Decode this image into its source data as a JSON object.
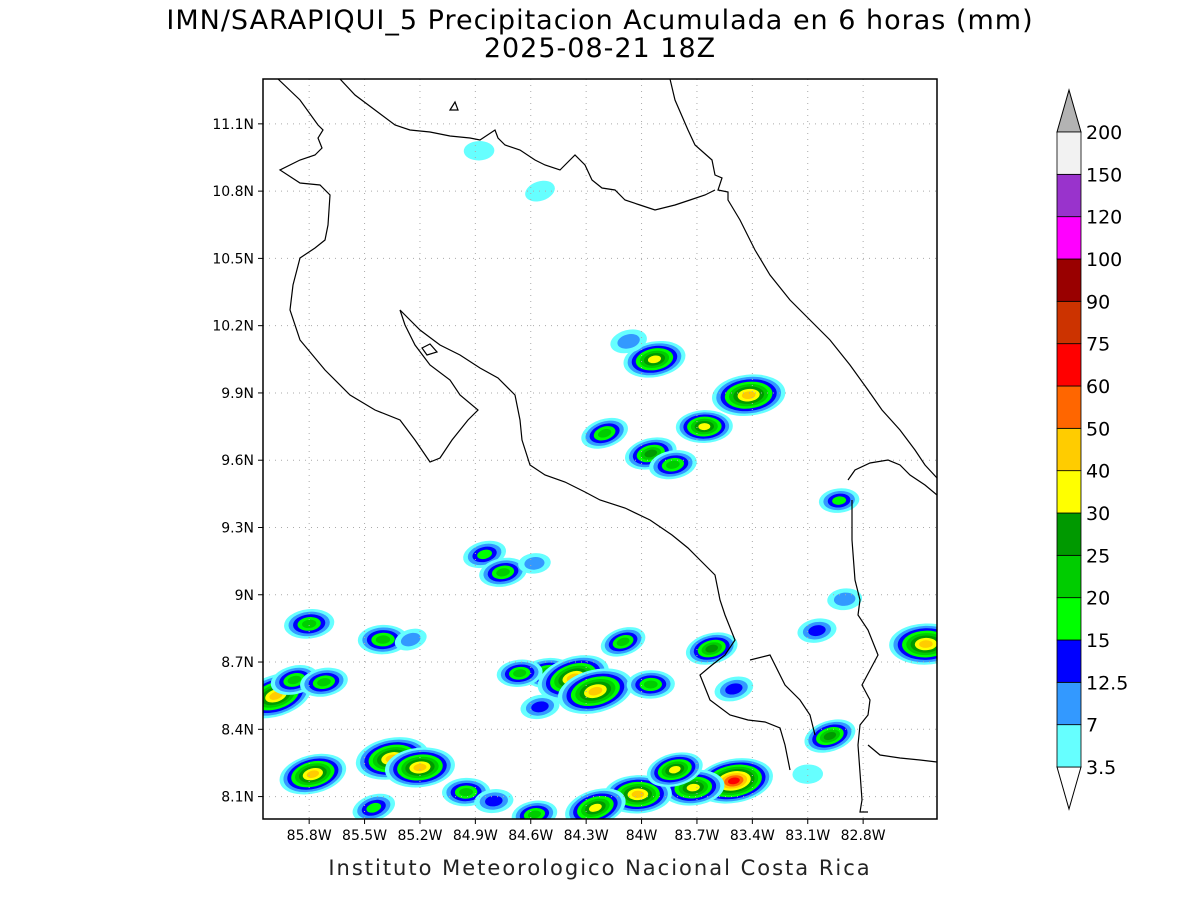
{
  "title": {
    "line1": "IMN/SARAPIQUI_5 Precipitacion Acumulada en 6 horas (mm)",
    "line2": "2025-08-21 18Z"
  },
  "map": {
    "lon_range": [
      -86.05,
      -82.4
    ],
    "lat_range": [
      8.0,
      11.3
    ],
    "lat_ticks": [
      {
        "v": 11.1,
        "label": "11.1N"
      },
      {
        "v": 10.8,
        "label": "10.8N"
      },
      {
        "v": 10.5,
        "label": "10.5N"
      },
      {
        "v": 10.2,
        "label": "10.2N"
      },
      {
        "v": 9.9,
        "label": "9.9N"
      },
      {
        "v": 9.6,
        "label": "9.6N"
      },
      {
        "v": 9.3,
        "label": "9.3N"
      },
      {
        "v": 9.0,
        "label": "9N"
      },
      {
        "v": 8.7,
        "label": "8.7N"
      },
      {
        "v": 8.4,
        "label": "8.4N"
      },
      {
        "v": 8.1,
        "label": "8.1N"
      }
    ],
    "lon_ticks": [
      {
        "v": -85.8,
        "label": "85.8W"
      },
      {
        "v": -85.5,
        "label": "85.5W"
      },
      {
        "v": -85.2,
        "label": "85.2W"
      },
      {
        "v": -84.9,
        "label": "84.9W"
      },
      {
        "v": -84.6,
        "label": "84.6W"
      },
      {
        "v": -84.3,
        "label": "84.3W"
      },
      {
        "v": -84.0,
        "label": "84W"
      },
      {
        "v": -83.7,
        "label": "83.7W"
      },
      {
        "v": -83.4,
        "label": "83.4W"
      },
      {
        "v": -83.1,
        "label": "83.1W"
      },
      {
        "v": -82.8,
        "label": "82.8W"
      }
    ]
  },
  "legend": {
    "levels": [
      "3.5",
      "7",
      "12.5",
      "15",
      "20",
      "25",
      "30",
      "40",
      "50",
      "60",
      "75",
      "90",
      "100",
      "120",
      "150",
      "200"
    ],
    "colors": [
      "#66ffff",
      "#3399ff",
      "#0000ff",
      "#00ff00",
      "#00cc00",
      "#009900",
      "#ffff00",
      "#ffcc00",
      "#ff6600",
      "#ff0000",
      "#cc3300",
      "#990000",
      "#ff00ff",
      "#9933cc",
      "#f2f2f2"
    ],
    "over_color": "#b3b3b3"
  },
  "precip_cells": [
    {
      "lon": -85.98,
      "lat": 8.55,
      "peak": 45
    },
    {
      "lon": -85.88,
      "lat": 8.62,
      "peak": 22
    },
    {
      "lon": -85.72,
      "lat": 8.61,
      "peak": 22
    },
    {
      "lon": -85.8,
      "lat": 8.87,
      "peak": 24
    },
    {
      "lon": -85.4,
      "lat": 8.8,
      "peak": 24
    },
    {
      "lon": -85.25,
      "lat": 8.8,
      "peak": 8
    },
    {
      "lon": -85.78,
      "lat": 8.2,
      "peak": 40
    },
    {
      "lon": -85.35,
      "lat": 8.27,
      "peak": 45
    },
    {
      "lon": -85.2,
      "lat": 8.23,
      "peak": 42
    },
    {
      "lon": -84.95,
      "lat": 8.12,
      "peak": 22
    },
    {
      "lon": -85.45,
      "lat": 8.05,
      "peak": 18
    },
    {
      "lon": -84.85,
      "lat": 9.18,
      "peak": 18
    },
    {
      "lon": -84.75,
      "lat": 9.1,
      "peak": 22
    },
    {
      "lon": -84.58,
      "lat": 9.14,
      "peak": 8
    },
    {
      "lon": -84.5,
      "lat": 8.65,
      "peak": 26
    },
    {
      "lon": -84.37,
      "lat": 8.63,
      "peak": 45
    },
    {
      "lon": -84.25,
      "lat": 8.57,
      "peak": 48
    },
    {
      "lon": -84.55,
      "lat": 8.5,
      "peak": 14
    },
    {
      "lon": -84.66,
      "lat": 8.65,
      "peak": 20
    },
    {
      "lon": -83.95,
      "lat": 8.6,
      "peak": 22
    },
    {
      "lon": -84.1,
      "lat": 8.79,
      "peak": 20
    },
    {
      "lon": -83.62,
      "lat": 8.76,
      "peak": 26
    },
    {
      "lon": -83.93,
      "lat": 10.05,
      "peak": 35
    },
    {
      "lon": -83.42,
      "lat": 9.89,
      "peak": 45
    },
    {
      "lon": -83.66,
      "lat": 9.75,
      "peak": 30
    },
    {
      "lon": -84.2,
      "lat": 9.72,
      "peak": 22
    },
    {
      "lon": -83.95,
      "lat": 9.63,
      "peak": 26
    },
    {
      "lon": -83.83,
      "lat": 9.58,
      "peak": 22
    },
    {
      "lon": -82.93,
      "lat": 9.42,
      "peak": 15
    },
    {
      "lon": -82.46,
      "lat": 8.78,
      "peak": 45
    },
    {
      "lon": -82.98,
      "lat": 8.37,
      "peak": 26
    },
    {
      "lon": -83.5,
      "lat": 8.58,
      "peak": 14
    },
    {
      "lon": -83.5,
      "lat": 8.17,
      "peak": 70
    },
    {
      "lon": -83.72,
      "lat": 8.14,
      "peak": 35
    },
    {
      "lon": -84.02,
      "lat": 8.11,
      "peak": 40
    },
    {
      "lon": -84.25,
      "lat": 8.05,
      "peak": 35
    },
    {
      "lon": -83.82,
      "lat": 8.22,
      "peak": 30
    },
    {
      "lon": -84.58,
      "lat": 8.02,
      "peak": 20
    },
    {
      "lon": -84.8,
      "lat": 8.08,
      "peak": 14
    },
    {
      "lon": -84.88,
      "lat": 10.98,
      "peak": 6
    },
    {
      "lon": -84.55,
      "lat": 10.8,
      "peak": 6
    },
    {
      "lon": -84.07,
      "lat": 10.13,
      "peak": 12
    },
    {
      "lon": -83.05,
      "lat": 8.84,
      "peak": 14
    },
    {
      "lon": -82.9,
      "lat": 8.98,
      "peak": 10
    },
    {
      "lon": -83.1,
      "lat": 8.2,
      "peak": 6
    }
  ],
  "footer": "Instituto Meteorologico Nacional Costa Rica"
}
